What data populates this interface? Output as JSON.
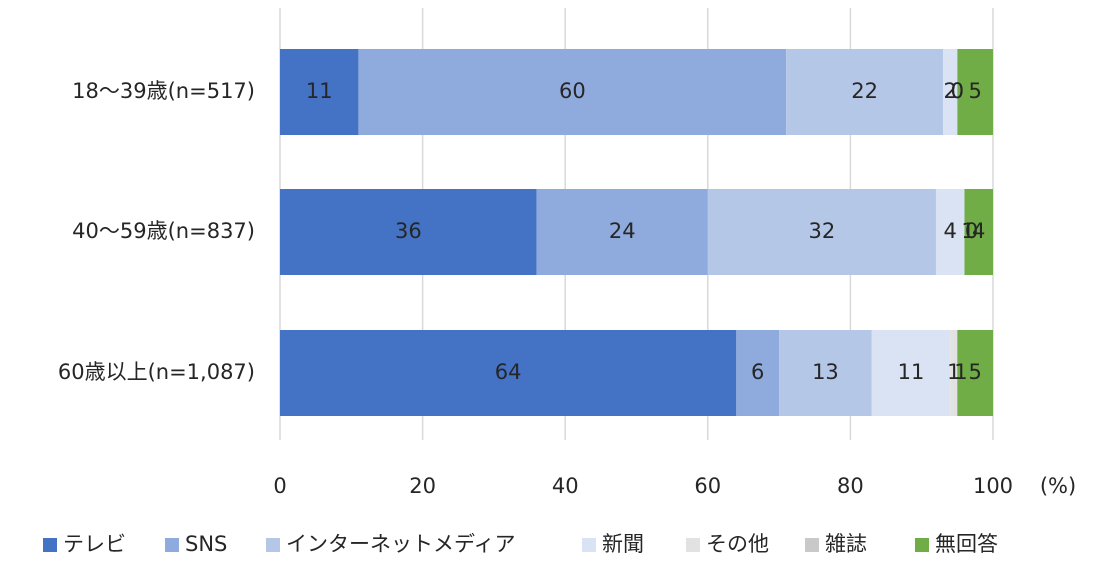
{
  "chart_data": {
    "type": "bar",
    "orientation": "horizontal",
    "stacked": true,
    "categories": [
      "18〜39歳(n=517)",
      "40〜59歳(n=837)",
      "60歳以上(n=1,087)"
    ],
    "series": [
      {
        "name": "テレビ",
        "color": "#4472c4",
        "values": [
          11,
          36,
          64
        ]
      },
      {
        "name": "SNS",
        "color": "#8faadc",
        "values": [
          60,
          24,
          6
        ]
      },
      {
        "name": "インターネットメディア",
        "color": "#b4c7e7",
        "values": [
          22,
          32,
          13
        ]
      },
      {
        "name": "新聞",
        "color": "#dae3f3",
        "values": [
          2,
          4,
          11
        ]
      },
      {
        "name": "その他",
        "color": "#e2e2e2",
        "values": [
          0,
          1,
          1
        ]
      },
      {
        "name": "雑誌",
        "color": "#c9c9c9",
        "values": [
          0,
          0,
          1
        ]
      },
      {
        "name": "無回答",
        "color": "#70ad47",
        "values": [
          5,
          4,
          5
        ]
      }
    ],
    "xlim": [
      0,
      100
    ],
    "xticks": [
      0,
      20,
      40,
      60,
      80,
      100
    ],
    "unit_label": "(%)",
    "grid": true,
    "legend_position": "bottom"
  }
}
